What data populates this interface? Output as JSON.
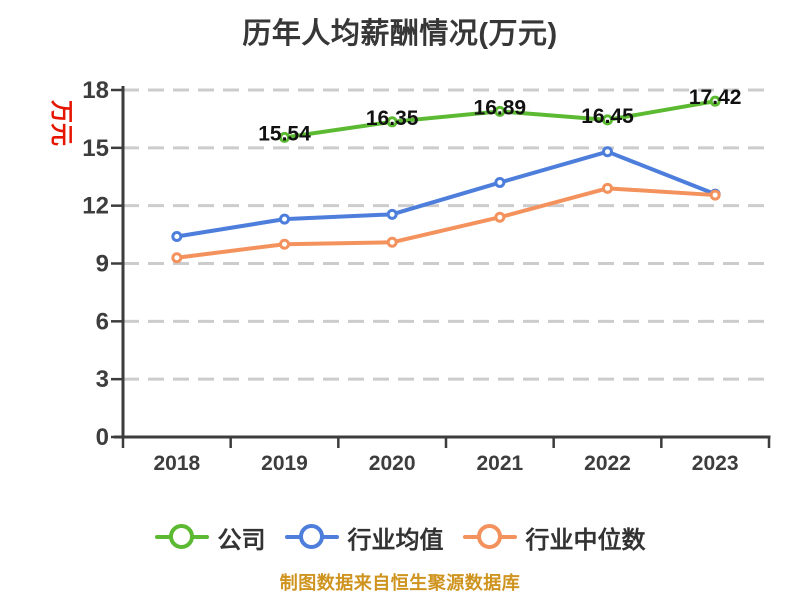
{
  "title": "历年人均薪酬情况(万元)",
  "y_axis_unit": "万元",
  "footer_note": "制图数据来自恒生聚源数据库",
  "colors": {
    "company": "#5cba32",
    "industry_avg": "#4d7edc",
    "industry_median": "#f4925e",
    "grid": "#cccccc",
    "axis": "#3c3c3c",
    "tick_label": "#3d3d3d",
    "data_label": "#111111",
    "title": "#373737",
    "unit_label": "#e61500",
    "footer": "#cf941f",
    "legend_label": "#333333",
    "marker_fill": "#ffffff"
  },
  "chart_data": {
    "type": "line",
    "title": "历年人均薪酬情况(万元)",
    "categories": [
      "2018",
      "2019",
      "2020",
      "2021",
      "2022",
      "2023"
    ],
    "series": [
      {
        "name": "公司",
        "color_key": "company",
        "values": [
          null,
          15.54,
          16.35,
          16.89,
          16.45,
          17.42
        ],
        "data_labels": true
      },
      {
        "name": "行业均值",
        "color_key": "industry_avg",
        "values": [
          10.4,
          11.3,
          11.55,
          13.2,
          14.8,
          12.6
        ],
        "data_labels": false
      },
      {
        "name": "行业中位数",
        "color_key": "industry_median",
        "values": [
          9.3,
          10.0,
          10.1,
          11.4,
          12.9,
          12.55
        ],
        "data_labels": false
      }
    ],
    "ylim": [
      0,
      18
    ],
    "yticks": [
      0,
      3,
      6,
      9,
      12,
      15,
      18
    ],
    "grid": "dashed-horizontal",
    "legend_position": "bottom",
    "xlabel": "",
    "ylabel": "万元"
  }
}
